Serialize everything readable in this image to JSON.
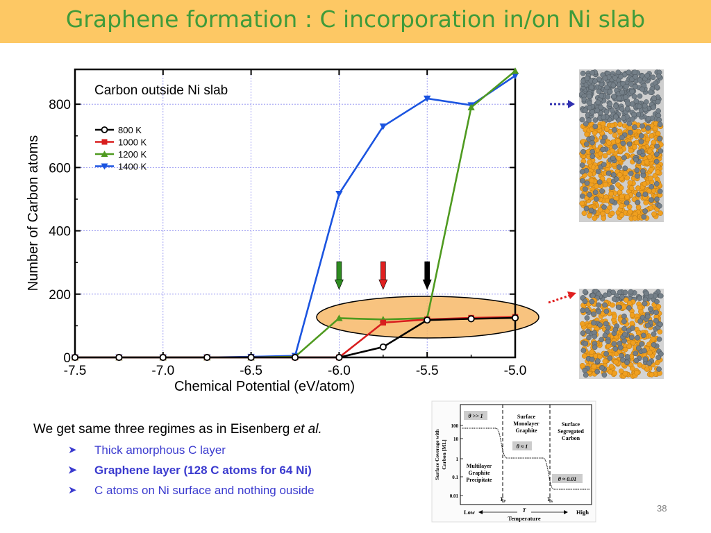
{
  "slide": {
    "title": "Graphene formation : C incorporation in/on Ni slab",
    "lead_prefix": "We get same three regimes as in Eisenberg ",
    "lead_italic": "et al.",
    "bullets": [
      "Thick amorphous C layer",
      "Graphene layer (128 C atoms for 64 Ni)",
      "C atoms on Ni surface and nothing ouside"
    ],
    "page_number": "38",
    "colors": {
      "title_bar": "#fdc864",
      "title_text": "#3f9b3a",
      "bullet_text": "#3b3bcf"
    }
  },
  "chart_data": [
    {
      "type": "line",
      "title": "Carbon outside Ni slab",
      "xlabel": "Chemical Potential (eV/atom)",
      "ylabel": "Number of Carbon atoms",
      "xlim": [
        -7.5,
        -5.0
      ],
      "ylim": [
        0,
        910
      ],
      "xticks": [
        -7.5,
        -7.0,
        -6.5,
        -6.0,
        -5.5,
        -5.0
      ],
      "xtick_labels": [
        "-7.5",
        "-7.0",
        "-6.5",
        "-6.0",
        "-5.5",
        "-5.0"
      ],
      "yticks": [
        0,
        200,
        400,
        600,
        800
      ],
      "ytick_labels": [
        "0",
        "200",
        "400",
        "600",
        "800"
      ],
      "grid": true,
      "legend_position": "upper-left",
      "series": [
        {
          "name": "800 K",
          "color": "#000000",
          "marker": "circle-open",
          "x": [
            -7.5,
            -7.25,
            -7.0,
            -6.75,
            -6.5,
            -6.25,
            -6.0,
            -5.75,
            -5.5,
            -5.25,
            -5.0
          ],
          "y": [
            0,
            0,
            0,
            0,
            0,
            0,
            0,
            33,
            118,
            122,
            125
          ]
        },
        {
          "name": "1000 K",
          "color": "#d81e1e",
          "marker": "square",
          "x": [
            -7.5,
            -7.25,
            -7.0,
            -6.75,
            -6.5,
            -6.25,
            -6.0,
            -5.75,
            -5.5,
            -5.25,
            -5.0
          ],
          "y": [
            0,
            0,
            0,
            0,
            0,
            0,
            0,
            110,
            120,
            125,
            128
          ]
        },
        {
          "name": "1200 K",
          "color": "#4f9a20",
          "marker": "triangle-up",
          "x": [
            -7.5,
            -7.25,
            -7.0,
            -6.75,
            -6.5,
            -6.25,
            -6.0,
            -5.75,
            -5.5,
            -5.25,
            -5.0
          ],
          "y": [
            0,
            0,
            0,
            0,
            0,
            2,
            124,
            120,
            124,
            790,
            905
          ]
        },
        {
          "name": "1400 K",
          "color": "#1b54e0",
          "marker": "triangle-down",
          "x": [
            -7.5,
            -7.25,
            -7.0,
            -6.75,
            -6.5,
            -6.25,
            -6.0,
            -5.75,
            -5.5,
            -5.25,
            -5.0
          ],
          "y": [
            0,
            0,
            0,
            0,
            2,
            5,
            517,
            730,
            818,
            797,
            890
          ]
        }
      ],
      "arrows": [
        {
          "x": -6.0,
          "color": "#2e8b20"
        },
        {
          "x": -5.75,
          "color": "#e02020"
        },
        {
          "x": -5.5,
          "color": "#000000"
        }
      ],
      "highlight_color": "#f7b868"
    },
    {
      "type": "line",
      "ylabel": "Surface Coverage with Carbon [ML]",
      "xlabel": "Temperature",
      "ytick_labels": [
        "100",
        "10",
        "1",
        "0.1",
        "0.01"
      ],
      "x_left_label": "Low",
      "x_mid_label": "T",
      "x_right_label": "High",
      "markers": [
        "T_P",
        "T_S"
      ],
      "regions": [
        {
          "lines": [
            "Multilayer",
            "Graphite",
            "Precipitate"
          ],
          "badge": "θ >> 1"
        },
        {
          "lines": [
            "Surface",
            "Monolayer",
            "Graphite"
          ],
          "badge": "θ ≈ 1"
        },
        {
          "lines": [
            "Surface",
            "Segregated",
            "Carbon"
          ],
          "badge": "θ ≈ 0.01"
        }
      ]
    }
  ]
}
